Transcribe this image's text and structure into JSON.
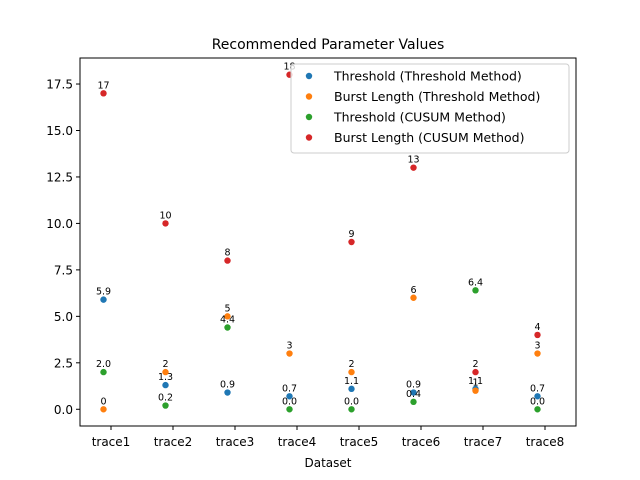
{
  "chart_data": {
    "type": "scatter",
    "title": "Recommended Parameter Values",
    "xlabel": "Dataset",
    "ylabel": "",
    "categories": [
      "trace1",
      "trace2",
      "trace3",
      "trace4",
      "trace5",
      "trace6",
      "trace7",
      "trace8"
    ],
    "ylim": [
      -0.9,
      18.9
    ],
    "yticks": [
      0.0,
      2.5,
      5.0,
      7.5,
      10.0,
      12.5,
      15.0,
      17.5
    ],
    "ytick_labels": [
      "0.0",
      "2.5",
      "5.0",
      "7.5",
      "10.0",
      "12.5",
      "15.0",
      "17.5"
    ],
    "grid": false,
    "legend_position": "top-right",
    "series": [
      {
        "name": "Threshold (Threshold Method)",
        "color": "#1f77b4",
        "values": [
          5.9,
          1.3,
          0.9,
          0.7,
          1.1,
          0.9,
          1.1,
          0.7
        ],
        "labels": [
          "5.9",
          "1.3",
          "0.9",
          "0.7",
          "1.1",
          "0.9",
          "1.1",
          "0.7"
        ]
      },
      {
        "name": "Burst Length (Threshold Method)",
        "color": "#ff7f0e",
        "values": [
          0,
          2,
          5,
          3,
          2,
          6,
          1,
          3
        ],
        "labels": [
          "0",
          "2",
          "5",
          "3",
          "2",
          "6",
          "1",
          "3"
        ]
      },
      {
        "name": "Threshold  (CUSUM Method)",
        "color": "#2ca02c",
        "values": [
          2.0,
          0.2,
          4.4,
          0.0,
          0.0,
          0.4,
          6.4,
          0.0
        ],
        "labels": [
          "2.0",
          "0.2",
          "4.4",
          "0.0",
          "0.0",
          "0.4",
          "6.4",
          "0.0"
        ]
      },
      {
        "name": "Burst Length (CUSUM Method)",
        "color": "#d62728",
        "values": [
          17,
          10,
          8,
          18,
          9,
          13,
          2,
          4
        ],
        "labels": [
          "17",
          "10",
          "8",
          "18",
          "9",
          "13",
          "2",
          "4"
        ]
      }
    ]
  }
}
